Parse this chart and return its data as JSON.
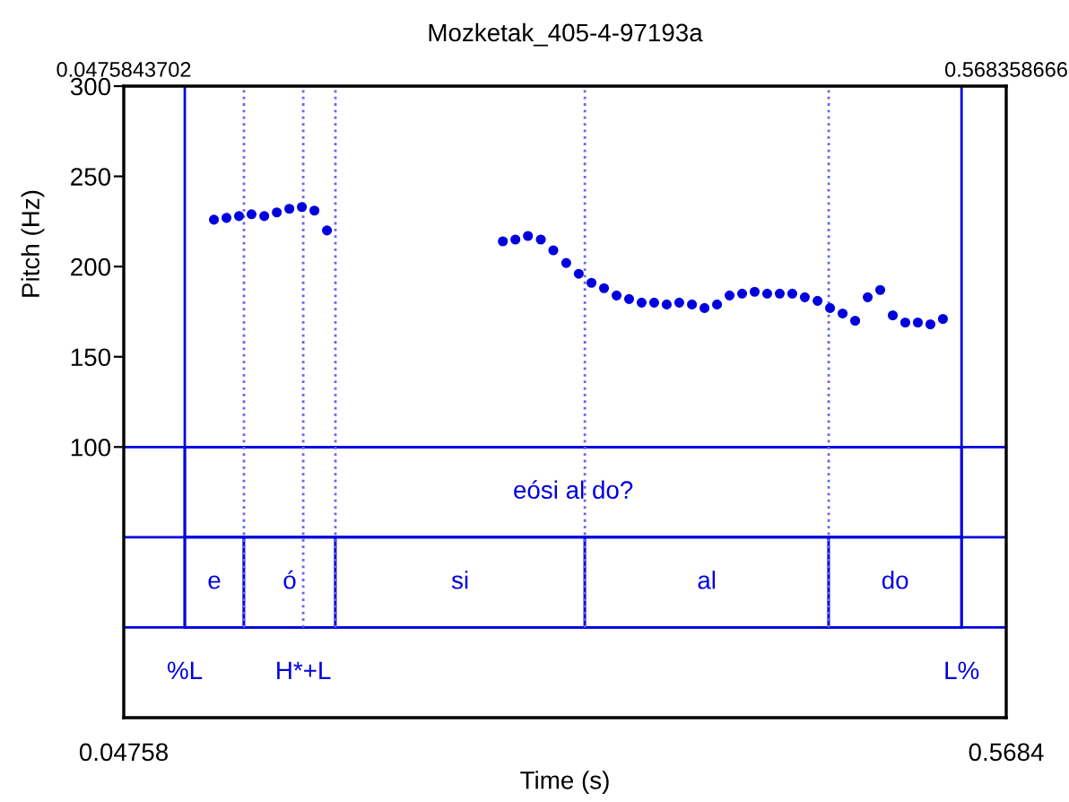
{
  "chart_data": {
    "type": "scatter",
    "title": "Mozketak_405-4-97193a",
    "xlabel": "Time (s)",
    "ylabel": "Pitch (Hz)",
    "xlim": [
      0.0475843702,
      0.568358666
    ],
    "xticks": [
      {
        "value": 0.0475843702,
        "label": "0.04758"
      },
      {
        "value": 0.568358666,
        "label": "0.5684"
      }
    ],
    "x2lim": [
      0.0475843702,
      0.568358666
    ],
    "x2ticks": [
      0.0475843702,
      0.568358666
    ],
    "ylim": [
      -50,
      300
    ],
    "yticks": [
      100,
      150,
      200,
      250,
      300
    ],
    "grid": false,
    "marker": "circle",
    "series": [
      {
        "color": "#0000dd",
        "x": [
          0.1008,
          0.1082,
          0.1156,
          0.123,
          0.1305,
          0.1379,
          0.1453,
          0.1527,
          0.1601,
          0.1675,
          0.2713,
          0.2787,
          0.2861,
          0.2937,
          0.3011,
          0.3087,
          0.3161,
          0.3236,
          0.331,
          0.3384,
          0.3458,
          0.3532,
          0.3606,
          0.368,
          0.3754,
          0.3829,
          0.3903,
          0.3977,
          0.4051,
          0.4125,
          0.4199,
          0.4273,
          0.4347,
          0.4421,
          0.4495,
          0.457,
          0.4644,
          0.4718,
          0.4792,
          0.4866,
          0.494,
          0.5014,
          0.5088,
          0.5162,
          0.5236,
          0.531
        ],
        "values": [
          226,
          227,
          228,
          229,
          228,
          230,
          232,
          233,
          231,
          220,
          214,
          215,
          217,
          215,
          209,
          202,
          196,
          191,
          188,
          184,
          182,
          180,
          180,
          179,
          180,
          179,
          177,
          179,
          184,
          185,
          186,
          185,
          185,
          185,
          183,
          181,
          177,
          174,
          170,
          183,
          187,
          173,
          169,
          169,
          168,
          171
        ]
      }
    ],
    "ref_lines": [
      {
        "axis": "y",
        "value": 100,
        "color": "#0000dd",
        "line_style": "solid"
      },
      {
        "axis": "y",
        "value": 50,
        "color": "#0000dd",
        "line_style": "solid"
      },
      {
        "axis": "y",
        "value": 0,
        "color": "#0000dd",
        "line_style": "solid"
      },
      {
        "axis": "x",
        "value": 0.0836,
        "label": "%L",
        "color": "#0000dd",
        "line_style": "solid"
      },
      {
        "axis": "x",
        "value": 0.1185,
        "color": "#6666ee",
        "line_style": "dotted"
      },
      {
        "axis": "x",
        "value": 0.1535,
        "label": "H*+L",
        "color": "#6666ee",
        "line_style": "dotted"
      },
      {
        "axis": "x",
        "value": 0.1725,
        "color": "#6666ee",
        "line_style": "dotted"
      },
      {
        "axis": "x",
        "value": 0.3197,
        "color": "#6666ee",
        "line_style": "dotted"
      },
      {
        "axis": "x",
        "value": 0.4636,
        "color": "#6666ee",
        "line_style": "dotted"
      },
      {
        "axis": "x",
        "value": 0.542,
        "label": "L%",
        "color": "#0000dd",
        "line_style": "solid"
      }
    ],
    "bands": [
      {
        "axis": "x",
        "from": 0.0836,
        "to": 0.542,
        "label": "eósi al do?",
        "color": "#ffffff"
      },
      {
        "axis": "x",
        "from": 0.0836,
        "to": 0.1185,
        "label": "e",
        "color": "#ffffff"
      },
      {
        "axis": "x",
        "from": 0.1185,
        "to": 0.1725,
        "label": "ó",
        "color": "#ffffff"
      },
      {
        "axis": "x",
        "from": 0.1725,
        "to": 0.3197,
        "label": "si",
        "color": "#ffffff"
      },
      {
        "axis": "x",
        "from": 0.3197,
        "to": 0.4636,
        "label": "al",
        "color": "#ffffff"
      },
      {
        "axis": "x",
        "from": 0.4636,
        "to": 0.542,
        "label": "do",
        "color": "#ffffff"
      }
    ]
  }
}
